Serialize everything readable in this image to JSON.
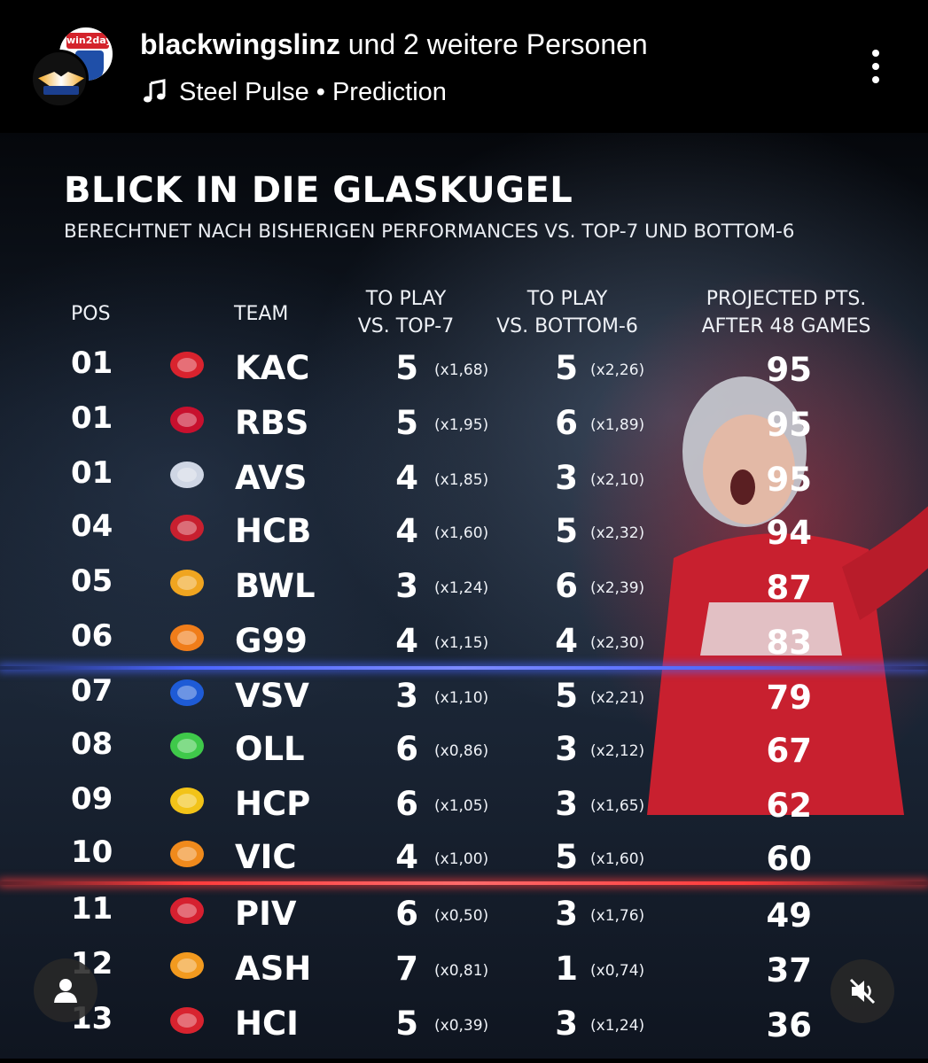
{
  "post": {
    "title_bold": "blackwingslinz",
    "title_rest": " und 2 weitere Personen",
    "music": "Steel Pulse • Prediction",
    "avatar_back_text": "win2day"
  },
  "graphic": {
    "title": "BLICK IN DIE GLASKUGEL",
    "subtitle": "BERECHTNET NACH BISHERIGEN PERFORMANCES VS. TOP-7 UND BOTTOM-6",
    "headers": {
      "pos": "POS",
      "team": "TEAM",
      "top7_line1": "TO PLAY",
      "top7_line2": "VS. TOP-7",
      "bottom6_line1": "TO PLAY",
      "bottom6_line2": "VS. BOTTOM-6",
      "proj_line1": "PROJECTED PTS.",
      "proj_line2": "AFTER 48 GAMES"
    },
    "rows": [
      {
        "pos": "01",
        "team": "KAC",
        "top7": "5",
        "top7_mult": "(x1,68)",
        "bottom6": "5",
        "bottom6_mult": "(x2,26)",
        "projected": "95",
        "logo_color": "#d9232e"
      },
      {
        "pos": "01",
        "team": "RBS",
        "top7": "5",
        "top7_mult": "(x1,95)",
        "bottom6": "6",
        "bottom6_mult": "(x1,89)",
        "projected": "95",
        "logo_color": "#c8102e"
      },
      {
        "pos": "01",
        "team": "AVS",
        "top7": "4",
        "top7_mult": "(x1,85)",
        "bottom6": "3",
        "bottom6_mult": "(x2,10)",
        "projected": "95",
        "logo_color": "#cfd6e4"
      },
      {
        "pos": "04",
        "team": "HCB",
        "top7": "4",
        "top7_mult": "(x1,60)",
        "bottom6": "5",
        "bottom6_mult": "(x2,32)",
        "projected": "94",
        "logo_color": "#c8202f"
      },
      {
        "pos": "05",
        "team": "BWL",
        "top7": "3",
        "top7_mult": "(x1,24)",
        "bottom6": "6",
        "bottom6_mult": "(x2,39)",
        "projected": "87",
        "logo_color": "#f0a520"
      },
      {
        "pos": "06",
        "team": "G99",
        "top7": "4",
        "top7_mult": "(x1,15)",
        "bottom6": "4",
        "bottom6_mult": "(x2,30)",
        "projected": "83",
        "logo_color": "#f07d1a"
      },
      {
        "pos": "07",
        "team": "VSV",
        "top7": "3",
        "top7_mult": "(x1,10)",
        "bottom6": "5",
        "bottom6_mult": "(x2,21)",
        "projected": "79",
        "logo_color": "#1e5bd6"
      },
      {
        "pos": "08",
        "team": "OLL",
        "top7": "6",
        "top7_mult": "(x0,86)",
        "bottom6": "3",
        "bottom6_mult": "(x2,12)",
        "projected": "67",
        "logo_color": "#3fc94a"
      },
      {
        "pos": "09",
        "team": "HCP",
        "top7": "6",
        "top7_mult": "(x1,05)",
        "bottom6": "3",
        "bottom6_mult": "(x1,65)",
        "projected": "62",
        "logo_color": "#f2c318"
      },
      {
        "pos": "10",
        "team": "VIC",
        "top7": "4",
        "top7_mult": "(x1,00)",
        "bottom6": "5",
        "bottom6_mult": "(x1,60)",
        "projected": "60",
        "logo_color": "#f08a1c"
      },
      {
        "pos": "11",
        "team": "PIV",
        "top7": "6",
        "top7_mult": "(x0,50)",
        "bottom6": "3",
        "bottom6_mult": "(x1,76)",
        "projected": "49",
        "logo_color": "#d62030"
      },
      {
        "pos": "12",
        "team": "ASH",
        "top7": "7",
        "top7_mult": "(x0,81)",
        "bottom6": "1",
        "bottom6_mult": "(x0,74)",
        "projected": "37",
        "logo_color": "#f29a1f"
      },
      {
        "pos": "13",
        "team": "HCI",
        "top7": "5",
        "top7_mult": "(x0,39)",
        "bottom6": "3",
        "bottom6_mult": "(x1,24)",
        "projected": "36",
        "logo_color": "#d8232f"
      }
    ]
  },
  "icons": {
    "more": "more-vertical-icon",
    "music": "music-note-icon",
    "tag": "person-tag-icon",
    "mute": "speaker-muted-icon"
  }
}
